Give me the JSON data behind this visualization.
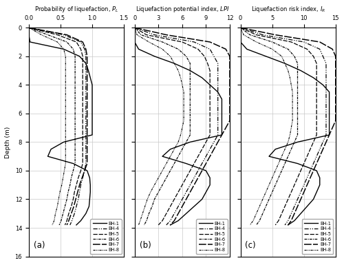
{
  "depth": [
    0,
    0.5,
    1.0,
    1.5,
    2.0,
    2.5,
    3.0,
    3.5,
    4.0,
    4.5,
    5.0,
    5.5,
    6.0,
    6.5,
    7.0,
    7.5,
    8.0,
    8.5,
    9.0,
    9.5,
    10.0,
    10.5,
    11.0,
    11.5,
    12.0,
    12.5,
    13.0,
    13.5,
    13.8
  ],
  "PL": {
    "BH-1": [
      0.0,
      0.0,
      0.02,
      0.55,
      0.8,
      0.9,
      0.94,
      0.97,
      1.0,
      1.0,
      1.0,
      1.0,
      1.0,
      1.0,
      1.0,
      1.0,
      0.55,
      0.35,
      0.3,
      0.7,
      0.92,
      0.96,
      0.97,
      0.97,
      0.96,
      0.95,
      0.9,
      0.82,
      0.75
    ],
    "BH-4": [
      0.0,
      0.55,
      0.82,
      0.88,
      0.9,
      0.9,
      0.9,
      0.9,
      0.9,
      0.9,
      0.9,
      0.9,
      0.9,
      0.9,
      0.9,
      0.9,
      0.9,
      0.9,
      0.9,
      0.9,
      0.88,
      0.85,
      0.82,
      0.8,
      0.78,
      0.75,
      0.72,
      0.68,
      0.65
    ],
    "BH-5": [
      0.0,
      0.45,
      0.75,
      0.82,
      0.85,
      0.85,
      0.85,
      0.85,
      0.85,
      0.85,
      0.85,
      0.85,
      0.85,
      0.85,
      0.85,
      0.85,
      0.85,
      0.85,
      0.85,
      0.85,
      0.82,
      0.78,
      0.75,
      0.72,
      0.7,
      0.67,
      0.63,
      0.6,
      0.57
    ],
    "BH-6": [
      0.0,
      0.3,
      0.6,
      0.7,
      0.73,
      0.73,
      0.73,
      0.73,
      0.73,
      0.73,
      0.73,
      0.73,
      0.73,
      0.73,
      0.73,
      0.73,
      0.73,
      0.73,
      0.73,
      0.73,
      0.7,
      0.67,
      0.65,
      0.62,
      0.6,
      0.57,
      0.54,
      0.51,
      0.48
    ],
    "BH-7": [
      0.0,
      0.6,
      0.85,
      0.9,
      0.92,
      0.92,
      0.92,
      0.92,
      0.92,
      0.92,
      0.92,
      0.92,
      0.92,
      0.92,
      0.92,
      0.92,
      0.92,
      0.92,
      0.92,
      0.92,
      0.88,
      0.84,
      0.8,
      0.77,
      0.74,
      0.71,
      0.67,
      0.63,
      0.6
    ],
    "BH-8": [
      0.0,
      0.2,
      0.45,
      0.55,
      0.58,
      0.58,
      0.58,
      0.58,
      0.58,
      0.58,
      0.58,
      0.58,
      0.58,
      0.58,
      0.58,
      0.58,
      0.58,
      0.58,
      0.58,
      0.58,
      0.56,
      0.54,
      0.52,
      0.49,
      0.47,
      0.45,
      0.42,
      0.4,
      0.37
    ]
  },
  "LPI": {
    "BH-1": [
      0.0,
      0.0,
      0.0,
      0.5,
      2.5,
      5.0,
      7.0,
      8.5,
      9.5,
      10.5,
      11.0,
      11.0,
      11.0,
      11.0,
      11.0,
      11.0,
      7.0,
      4.5,
      3.5,
      6.5,
      9.0,
      9.5,
      9.5,
      9.0,
      8.5,
      7.5,
      6.5,
      5.5,
      4.5
    ],
    "BH-4": [
      0.0,
      2.5,
      7.5,
      9.5,
      10.0,
      10.5,
      10.5,
      10.5,
      10.5,
      10.5,
      10.5,
      10.5,
      10.5,
      10.5,
      10.5,
      10.5,
      10.0,
      9.5,
      9.0,
      8.5,
      8.0,
      7.5,
      7.0,
      6.5,
      6.0,
      5.5,
      5.0,
      4.5,
      4.0
    ],
    "BH-5": [
      0.0,
      1.5,
      6.0,
      8.0,
      8.8,
      9.2,
      9.5,
      9.5,
      9.5,
      9.5,
      9.5,
      9.5,
      9.5,
      9.5,
      9.5,
      9.5,
      9.0,
      8.5,
      8.0,
      7.5,
      7.0,
      6.5,
      6.0,
      5.5,
      5.0,
      4.5,
      4.0,
      3.5,
      3.0
    ],
    "BH-6": [
      0.0,
      0.8,
      3.5,
      5.5,
      6.5,
      7.0,
      7.0,
      7.0,
      7.0,
      7.0,
      7.0,
      7.0,
      7.0,
      7.0,
      7.0,
      7.0,
      6.5,
      6.0,
      5.5,
      5.0,
      4.5,
      4.0,
      3.5,
      3.0,
      2.5,
      2.2,
      1.8,
      1.5,
      1.2
    ],
    "BH-7": [
      0.0,
      4.0,
      9.5,
      11.5,
      12.0,
      12.0,
      12.0,
      12.0,
      12.0,
      12.0,
      12.0,
      12.0,
      12.0,
      12.0,
      11.5,
      11.0,
      10.5,
      10.0,
      9.5,
      9.0,
      8.5,
      8.0,
      7.5,
      7.0,
      6.5,
      6.0,
      5.5,
      5.0,
      4.5
    ],
    "BH-8": [
      0.0,
      0.3,
      1.8,
      3.5,
      4.5,
      5.0,
      5.5,
      5.8,
      6.0,
      6.2,
      6.2,
      6.2,
      6.2,
      6.2,
      6.0,
      5.8,
      5.5,
      5.0,
      4.5,
      4.0,
      3.5,
      3.0,
      2.5,
      2.0,
      1.6,
      1.3,
      1.0,
      0.7,
      0.5
    ]
  },
  "IR": {
    "BH-1": [
      0.0,
      0.0,
      0.0,
      1.0,
      4.0,
      7.0,
      9.5,
      11.5,
      13.0,
      14.0,
      14.0,
      14.0,
      14.0,
      14.0,
      14.0,
      14.0,
      9.0,
      5.5,
      4.5,
      9.0,
      12.0,
      12.5,
      12.5,
      12.0,
      11.5,
      10.5,
      9.5,
      8.5,
      7.5
    ],
    "BH-4": [
      0.0,
      3.5,
      10.0,
      12.5,
      13.0,
      13.5,
      13.5,
      13.5,
      13.5,
      13.5,
      13.5,
      13.5,
      13.5,
      13.5,
      13.5,
      13.5,
      13.0,
      12.5,
      12.0,
      11.5,
      11.0,
      10.5,
      10.0,
      9.5,
      9.0,
      8.5,
      8.0,
      7.5,
      7.0
    ],
    "BH-5": [
      0.0,
      2.5,
      8.0,
      10.5,
      11.5,
      12.0,
      12.0,
      12.0,
      12.0,
      12.0,
      12.0,
      12.0,
      12.0,
      12.0,
      12.0,
      12.0,
      11.5,
      11.0,
      10.5,
      10.0,
      9.5,
      9.0,
      8.5,
      8.0,
      7.5,
      7.0,
      6.5,
      6.0,
      5.5
    ],
    "BH-6": [
      0.0,
      1.5,
      5.0,
      7.5,
      8.5,
      9.0,
      9.0,
      9.0,
      9.0,
      9.0,
      9.0,
      9.0,
      9.0,
      9.0,
      9.0,
      9.0,
      8.5,
      8.0,
      7.5,
      7.0,
      6.5,
      6.0,
      5.5,
      5.0,
      4.5,
      4.0,
      3.5,
      3.0,
      2.5
    ],
    "BH-7": [
      0.0,
      5.5,
      12.5,
      14.5,
      15.0,
      15.0,
      15.0,
      15.0,
      15.0,
      15.0,
      15.0,
      15.0,
      15.0,
      15.0,
      14.5,
      14.0,
      13.5,
      13.0,
      12.5,
      12.0,
      11.5,
      11.0,
      10.5,
      10.0,
      9.5,
      9.0,
      8.5,
      8.0,
      7.5
    ],
    "BH-8": [
      0.0,
      0.5,
      2.5,
      5.0,
      6.5,
      7.0,
      7.5,
      7.8,
      8.0,
      8.2,
      8.2,
      8.2,
      8.2,
      8.2,
      8.0,
      7.8,
      7.5,
      7.0,
      6.5,
      6.0,
      5.5,
      5.0,
      4.5,
      4.0,
      3.5,
      3.0,
      2.5,
      2.0,
      1.5
    ]
  },
  "ylim": [
    0,
    16
  ],
  "yticks": [
    0,
    2,
    4,
    6,
    8,
    10,
    12,
    14,
    16
  ],
  "ylabel": "Depth (m)",
  "PL_xlim": [
    0,
    1.5
  ],
  "PL_xticks": [
    0,
    0.5,
    1.0,
    1.5
  ],
  "LPI_xlim": [
    0,
    12
  ],
  "LPI_xticks": [
    0,
    3,
    6,
    9,
    12
  ],
  "IR_xlim": [
    0,
    15
  ],
  "IR_xticks": [
    0,
    5,
    10,
    15
  ],
  "PL_title": "Probability of liquefaction, $P_L$",
  "LPI_title": "Liquefaction potential index, $LPI$",
  "IR_title": "Liquefaction risk index, $I_R$",
  "label_a": "(a)",
  "label_b": "(b)",
  "label_c": "(c)",
  "legend_labels": [
    "BH-1",
    "BH-4",
    "BH-5",
    "BH-6",
    "BH-7",
    "BH-8"
  ]
}
